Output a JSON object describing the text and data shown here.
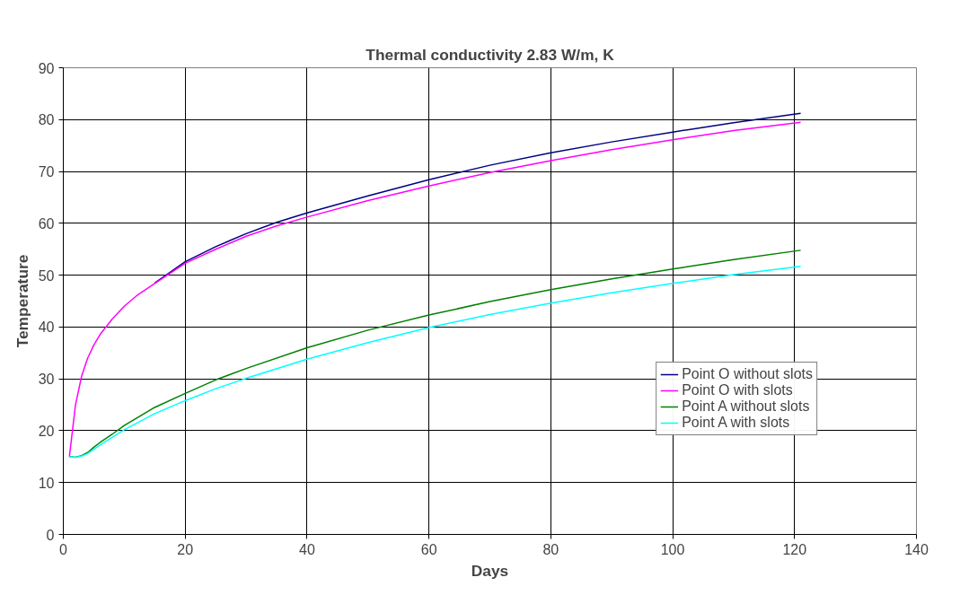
{
  "chart_data": {
    "type": "line",
    "title": "Thermal conductivity 2.83 W/m, K",
    "xlabel": "Days",
    "ylabel": "Temperature",
    "xlim": [
      0,
      140
    ],
    "xticks": [
      0,
      20,
      40,
      60,
      80,
      100,
      120,
      140
    ],
    "ylim": [
      0,
      90
    ],
    "yticks": [
      0,
      10,
      20,
      30,
      40,
      50,
      60,
      70,
      80,
      90
    ],
    "grid": true,
    "legend": "bottom right",
    "line_style": "solid",
    "series": [
      {
        "name": "Point O without slots",
        "color": "#000080",
        "x": [
          15,
          20,
          25,
          30,
          35,
          40,
          50,
          60,
          70,
          80,
          90,
          100,
          110,
          121
        ],
        "values": [
          48.5,
          52.6,
          55.5,
          58,
          60.2,
          62,
          65.3,
          68.4,
          71.2,
          73.6,
          75.7,
          77.6,
          79.4,
          81.2
        ]
      },
      {
        "name": "Point O with slots",
        "color": "#ff00ff",
        "x": [
          1,
          2,
          3,
          4,
          5,
          6,
          8,
          10,
          12,
          15,
          20,
          25,
          30,
          35,
          40,
          50,
          60,
          70,
          80,
          90,
          100,
          110,
          121
        ],
        "values": [
          15,
          25,
          30.5,
          34,
          36.5,
          38.5,
          41.5,
          44,
          46,
          48.4,
          52.3,
          55,
          57.5,
          59.5,
          61.2,
          64.4,
          67.2,
          69.8,
          72.1,
          74.2,
          76.1,
          77.9,
          79.5
        ]
      },
      {
        "name": "Point A without slots",
        "color": "#008000",
        "x": [
          1,
          2,
          3,
          4,
          5,
          6,
          8,
          10,
          15,
          20,
          25,
          30,
          40,
          50,
          60,
          70,
          80,
          90,
          100,
          110,
          121
        ],
        "values": [
          15,
          14.9,
          15.2,
          15.8,
          16.8,
          17.7,
          19.3,
          21,
          24.5,
          27.2,
          29.8,
          32,
          36,
          39.4,
          42.3,
          44.9,
          47.2,
          49.3,
          51.2,
          53,
          54.8
        ]
      },
      {
        "name": "Point A with slots",
        "color": "#00ffff",
        "x": [
          1,
          2,
          3,
          4,
          5,
          6,
          8,
          10,
          15,
          20,
          25,
          30,
          40,
          50,
          60,
          70,
          80,
          90,
          100,
          110,
          121
        ],
        "values": [
          15,
          14.9,
          15.1,
          15.6,
          16.4,
          17.2,
          18.7,
          20.2,
          23.3,
          25.8,
          28.1,
          30.1,
          33.8,
          37,
          39.9,
          42.4,
          44.6,
          46.6,
          48.4,
          50.1,
          51.7
        ]
      }
    ]
  }
}
